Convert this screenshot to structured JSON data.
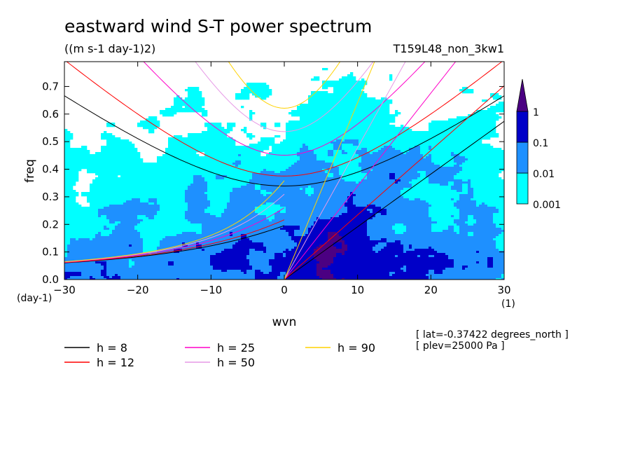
{
  "chart_data": {
    "type": "heatmap",
    "title": "eastward wind S-T power spectrum",
    "subtitle": "((m s-1 day-1)2)",
    "run_label": "T159L48_non_3kw1",
    "xlabel": "wvn",
    "ylabel": "freq",
    "x_unit_label": "(1)",
    "y_unit_label": "(day-1)",
    "xlim": [
      -30,
      30
    ],
    "ylim": [
      0,
      0.79
    ],
    "x_ticks": [
      -30,
      -20,
      -10,
      0,
      10,
      20,
      30
    ],
    "x_tick_labels": [
      "−30",
      "−20",
      "−10",
      "0",
      "10",
      "20",
      "30"
    ],
    "y_ticks": [
      0.0,
      0.1,
      0.2,
      0.3,
      0.4,
      0.5,
      0.6,
      0.7
    ],
    "y_tick_labels": [
      "0.0",
      "0.1",
      "0.2",
      "0.3",
      "0.4",
      "0.5",
      "0.6",
      "0.7"
    ],
    "colorbar": {
      "levels": [
        "0.001",
        "0.01",
        "0.1",
        "1"
      ],
      "colors": [
        "#00ffff",
        "#1e90ff",
        "#0000c8",
        "#4b0082"
      ]
    },
    "series": [
      {
        "name": "h =  8",
        "label": "h =  8",
        "color": "#000000",
        "h": 8
      },
      {
        "name": "h = 12",
        "label": "h = 12",
        "color": "#ff0000",
        "h": 12
      },
      {
        "name": "h = 25",
        "label": "h = 25",
        "color": "#ff00c8",
        "h": 25
      },
      {
        "name": "h = 50",
        "label": "h = 50",
        "color": "#e699e6",
        "h": 50
      },
      {
        "name": "h = 90",
        "label": "h = 90",
        "color": "#ffd200",
        "h": 90
      }
    ],
    "info_lines": [
      "[ lat=-0.37422 degrees_north ]",
      "[ plev=25000 Pa ]"
    ]
  }
}
